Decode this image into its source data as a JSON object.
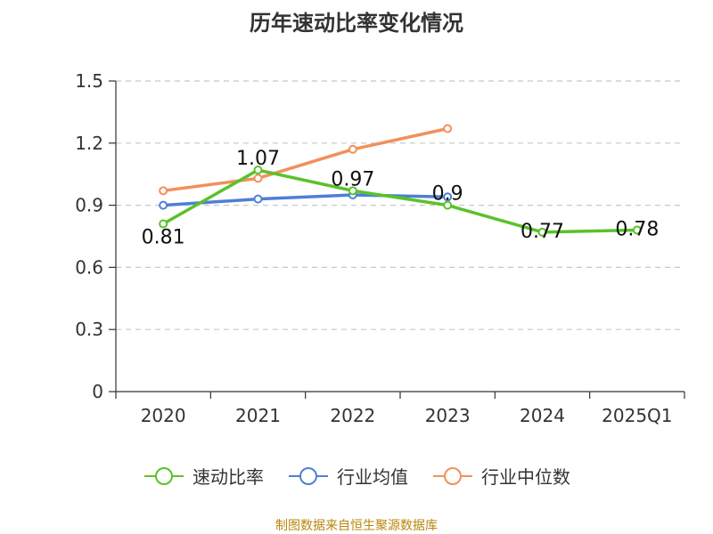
{
  "chart_data": {
    "type": "line",
    "title": "历年速动比率变化情况",
    "categories": [
      "2020",
      "2021",
      "2022",
      "2023",
      "2024",
      "2025Q1"
    ],
    "ylim": [
      0,
      1.5
    ],
    "yticks": [
      "0",
      "0.3",
      "0.6",
      "0.9",
      "1.2",
      "1.5"
    ],
    "ytick_values": [
      0,
      0.3,
      0.6,
      0.9,
      1.2,
      1.5
    ],
    "grid": true,
    "legend_position": "bottom",
    "series": [
      {
        "name": "速动比率",
        "color": "#5ac229",
        "values": [
          0.81,
          1.07,
          0.97,
          0.9,
          0.77,
          0.78
        ],
        "labels": [
          "0.81",
          "1.07",
          "0.97",
          "0.9",
          "0.77",
          "0.78"
        ]
      },
      {
        "name": "行业均值",
        "color": "#4f7fd6",
        "values": [
          0.9,
          0.93,
          0.95,
          0.94,
          null,
          null
        ]
      },
      {
        "name": "行业中位数",
        "color": "#f2905a",
        "values": [
          0.97,
          1.03,
          1.17,
          1.27,
          null,
          null
        ]
      }
    ],
    "source": "制图数据来自恒生聚源数据库"
  }
}
